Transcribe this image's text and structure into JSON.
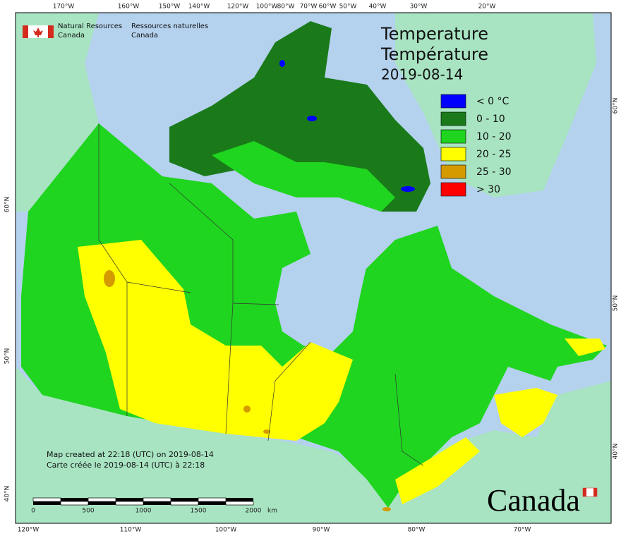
{
  "agency_en": [
    "Natural Resources",
    "Canada"
  ],
  "agency_fr": [
    "Ressources naturelles",
    "Canada"
  ],
  "title": [
    "Temperature",
    "Température"
  ],
  "date": "2019-08-14",
  "legend": [
    {
      "label": "< 0 °C",
      "color": "#0000ff"
    },
    {
      "label": "0 - 10",
      "color": "#1a7a1a"
    },
    {
      "label": "10 - 20",
      "color": "#1fd51f"
    },
    {
      "label": "20 - 25",
      "color": "#ffff00"
    },
    {
      "label": "25 - 30",
      "color": "#d49a00"
    },
    {
      "label": "> 30",
      "color": "#ff0000"
    }
  ],
  "top_labels": [
    "170°W",
    "160°W",
    "150°W",
    "140°W",
    "120°W",
    "100°W",
    "80°W",
    "70°W",
    "60°W",
    "50°W",
    "40°W",
    "30°W",
    "20°W"
  ],
  "bottom_labels": [
    "120°W",
    "110°W",
    "100°W",
    "90°W",
    "80°W",
    "70°W"
  ],
  "left_labels": [
    "60°N",
    "50°N",
    "40°N"
  ],
  "right_labels": [
    "60°N",
    "50°N",
    "40°N"
  ],
  "scale": {
    "ticks": [
      "0",
      "500",
      "1000",
      "1500",
      "2000"
    ],
    "unit": "km"
  },
  "notes": [
    "Map created at 22:18 (UTC) on 2019-08-14",
    "Carte créée le 2019-08-14 (UTC) à 22:18"
  ],
  "wordmark": "Canada"
}
